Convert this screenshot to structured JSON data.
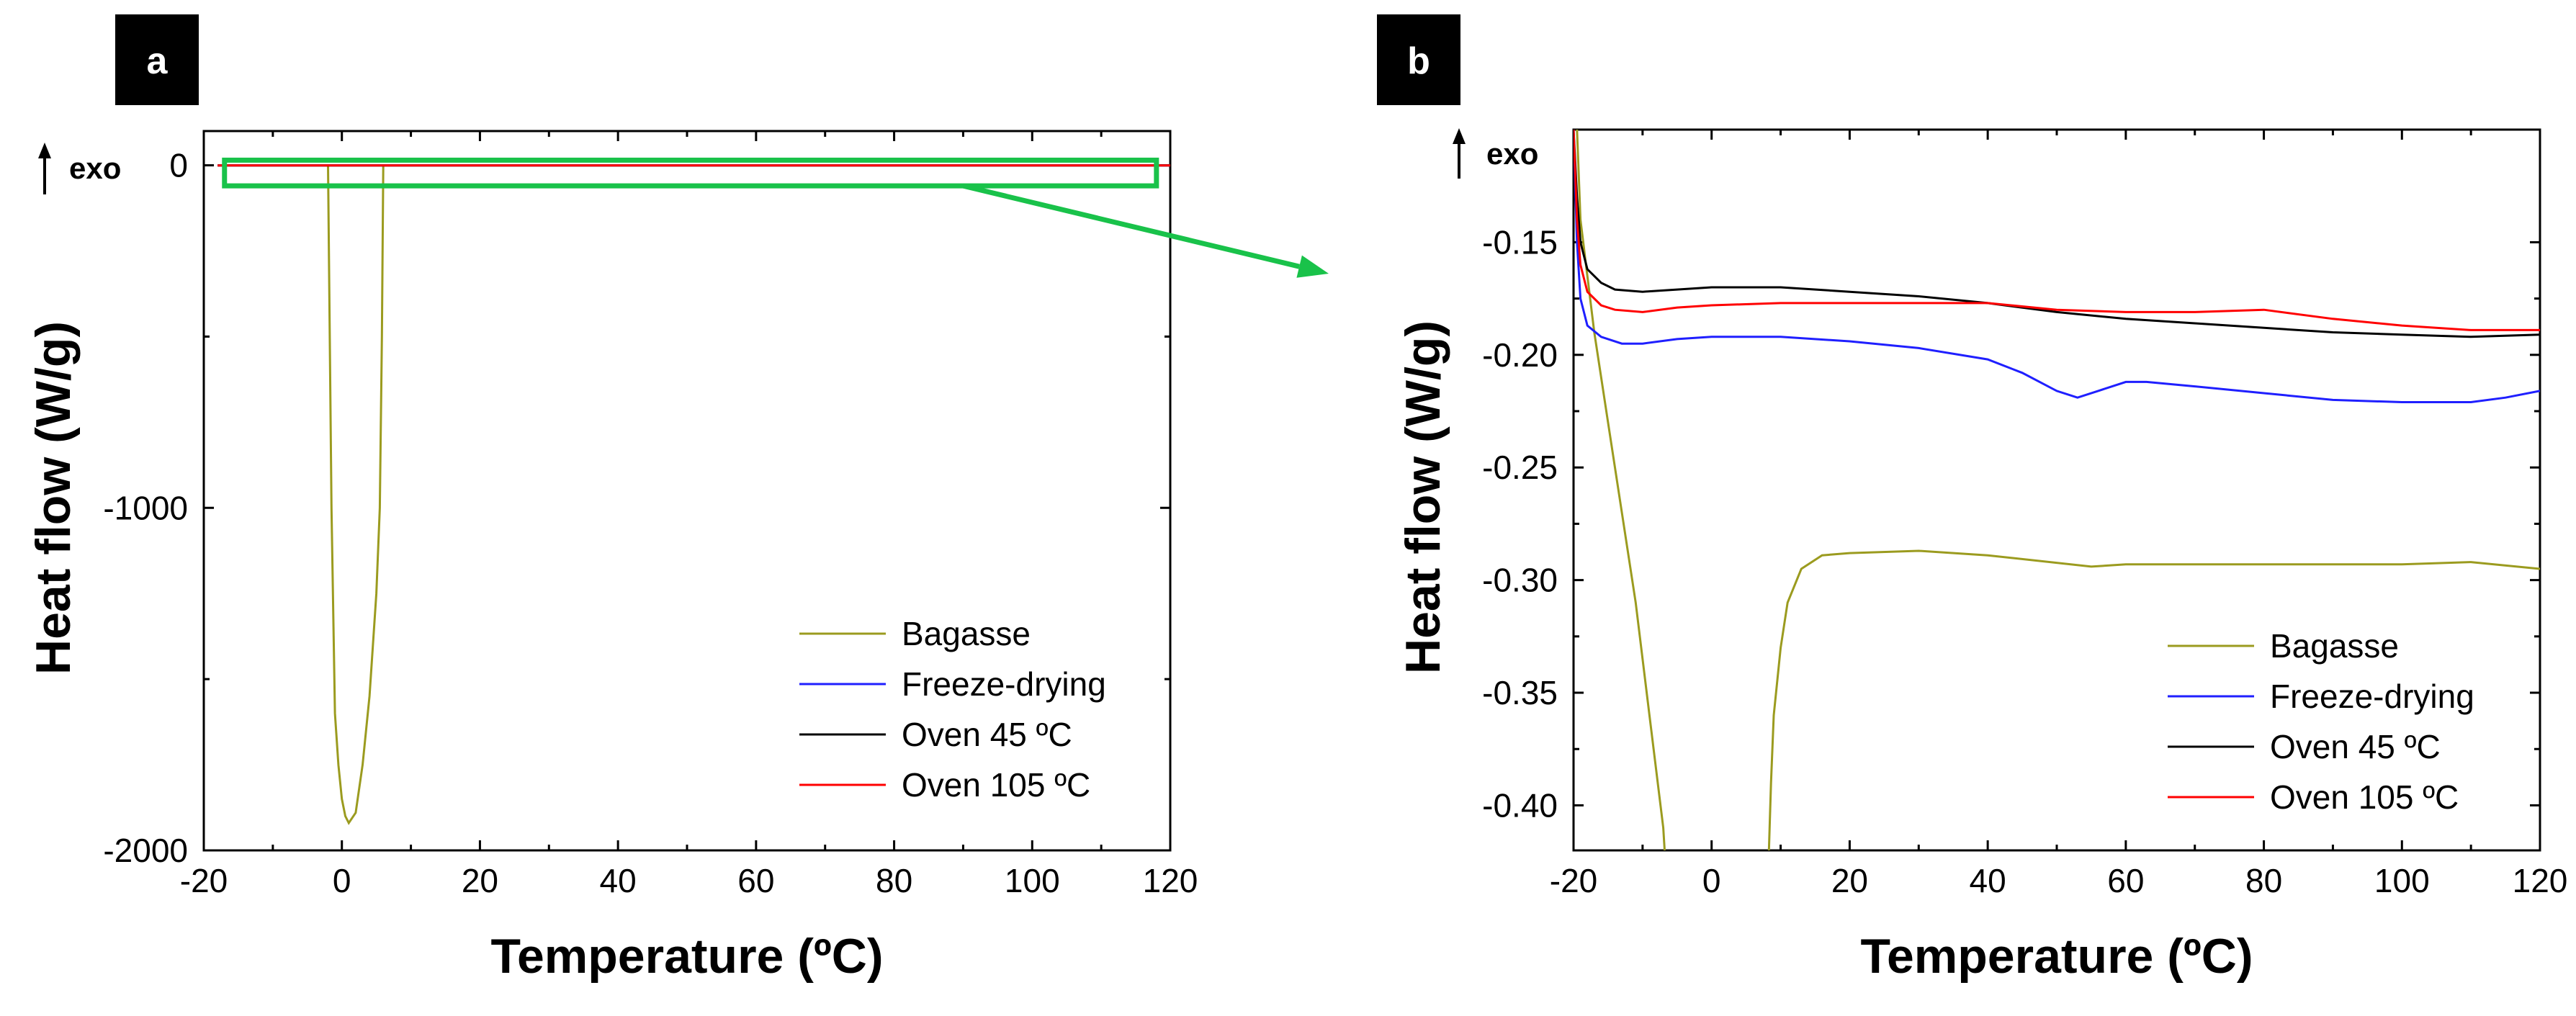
{
  "panel_labels": [
    "a",
    "b"
  ],
  "exo_label": "exo",
  "colors": {
    "Bagasse": "#9b9b1f",
    "Freeze-drying": "#1f1fff",
    "Oven 45 ºC": "#000000",
    "Oven 105 ºC": "#ff0000",
    "highlight": "#19c24a",
    "badge": "#000000"
  },
  "chart_data": [
    {
      "type": "line",
      "panel": "a",
      "xlabel": "Temperature (ºC)",
      "ylabel": "Heat flow (W/g)",
      "xlim": [
        -20,
        120
      ],
      "ylim": [
        -2000,
        100
      ],
      "xticks": [
        -20,
        0,
        20,
        40,
        60,
        80,
        100,
        120
      ],
      "yticks": [
        0,
        -1000,
        -2000
      ],
      "legend_position": "bottom-right",
      "highlight_box": {
        "x": [
          -17,
          118
        ],
        "y": [
          -60,
          15
        ]
      },
      "series": [
        {
          "name": "Bagasse",
          "x": [
            -2,
            -1.5,
            -1,
            -0.5,
            0,
            0.5,
            1,
            1.5,
            2,
            3,
            4,
            5,
            5.5,
            5.8,
            6
          ],
          "y": [
            0,
            -1000,
            -1600,
            -1750,
            -1850,
            -1900,
            -1920,
            -1905,
            -1890,
            -1750,
            -1550,
            -1250,
            -1000,
            -500,
            0
          ]
        },
        {
          "name": "Freeze-drying",
          "x": [
            -18,
            120
          ],
          "y": [
            -0.2,
            -0.2
          ]
        },
        {
          "name": "Oven 45 ºC",
          "x": [
            -18,
            120
          ],
          "y": [
            -0.18,
            -0.18
          ]
        },
        {
          "name": "Oven 105 ºC",
          "x": [
            -18,
            120
          ],
          "y": [
            -0.19,
            -0.19
          ]
        }
      ]
    },
    {
      "type": "line",
      "panel": "b",
      "xlabel": "Temperature (ºC)",
      "ylabel": "Heat flow (W/g)",
      "xlim": [
        -20,
        120
      ],
      "ylim": [
        -0.42,
        -0.1
      ],
      "xticks": [
        -20,
        0,
        20,
        40,
        60,
        80,
        100,
        120
      ],
      "yticks": [
        -0.15,
        -0.2,
        -0.25,
        -0.3,
        -0.35,
        -0.4
      ],
      "ytick_labels": [
        "-0.15",
        "-0.20",
        "-0.25",
        "-0.30",
        "-0.35",
        "-0.40"
      ],
      "legend_position": "bottom-right",
      "series": [
        {
          "name": "Bagasse",
          "x": [
            -19.5,
            -19,
            -17,
            -15,
            -13,
            -11,
            -9,
            -7,
            -6.8
          ],
          "y": [
            -0.1,
            -0.14,
            -0.19,
            -0.23,
            -0.27,
            -0.31,
            -0.36,
            -0.41,
            -0.42
          ]
        },
        {
          "name": "Bagasse",
          "x": [
            8.3,
            8.6,
            9,
            10,
            11,
            13,
            16,
            20,
            30,
            40,
            55,
            60,
            80,
            100,
            110,
            120
          ],
          "y": [
            -0.42,
            -0.39,
            -0.36,
            -0.33,
            -0.31,
            -0.295,
            -0.289,
            -0.288,
            -0.287,
            -0.289,
            -0.294,
            -0.293,
            -0.293,
            -0.293,
            -0.292,
            -0.295
          ]
        },
        {
          "name": "Freeze-drying",
          "x": [
            -20,
            -19.5,
            -19,
            -18,
            -16,
            -13,
            -10,
            -5,
            0,
            10,
            20,
            30,
            40,
            45,
            50,
            53,
            56,
            60,
            63,
            70,
            80,
            90,
            100,
            110,
            115,
            120
          ],
          "y": [
            -0.1,
            -0.15,
            -0.175,
            -0.187,
            -0.192,
            -0.195,
            -0.195,
            -0.193,
            -0.192,
            -0.192,
            -0.194,
            -0.197,
            -0.202,
            -0.208,
            -0.216,
            -0.219,
            -0.216,
            -0.212,
            -0.212,
            -0.214,
            -0.217,
            -0.22,
            -0.221,
            -0.221,
            -0.219,
            -0.216
          ]
        },
        {
          "name": "Oven 45 ºC",
          "x": [
            -20,
            -19.5,
            -19,
            -18,
            -16,
            -14,
            -10,
            -5,
            0,
            10,
            20,
            30,
            40,
            50,
            60,
            70,
            80,
            90,
            100,
            110,
            120
          ],
          "y": [
            -0.1,
            -0.13,
            -0.15,
            -0.162,
            -0.168,
            -0.171,
            -0.172,
            -0.171,
            -0.17,
            -0.17,
            -0.172,
            -0.174,
            -0.177,
            -0.181,
            -0.184,
            -0.186,
            -0.188,
            -0.19,
            -0.191,
            -0.192,
            -0.191
          ]
        },
        {
          "name": "Oven 105 ºC",
          "x": [
            -20,
            -19.5,
            -19,
            -18,
            -16,
            -14,
            -10,
            -5,
            0,
            10,
            20,
            30,
            40,
            50,
            60,
            70,
            80,
            90,
            100,
            110,
            120
          ],
          "y": [
            -0.1,
            -0.14,
            -0.16,
            -0.172,
            -0.178,
            -0.18,
            -0.181,
            -0.179,
            -0.178,
            -0.177,
            -0.177,
            -0.177,
            -0.177,
            -0.18,
            -0.181,
            -0.181,
            -0.18,
            -0.184,
            -0.187,
            -0.189,
            -0.189
          ]
        }
      ]
    }
  ]
}
